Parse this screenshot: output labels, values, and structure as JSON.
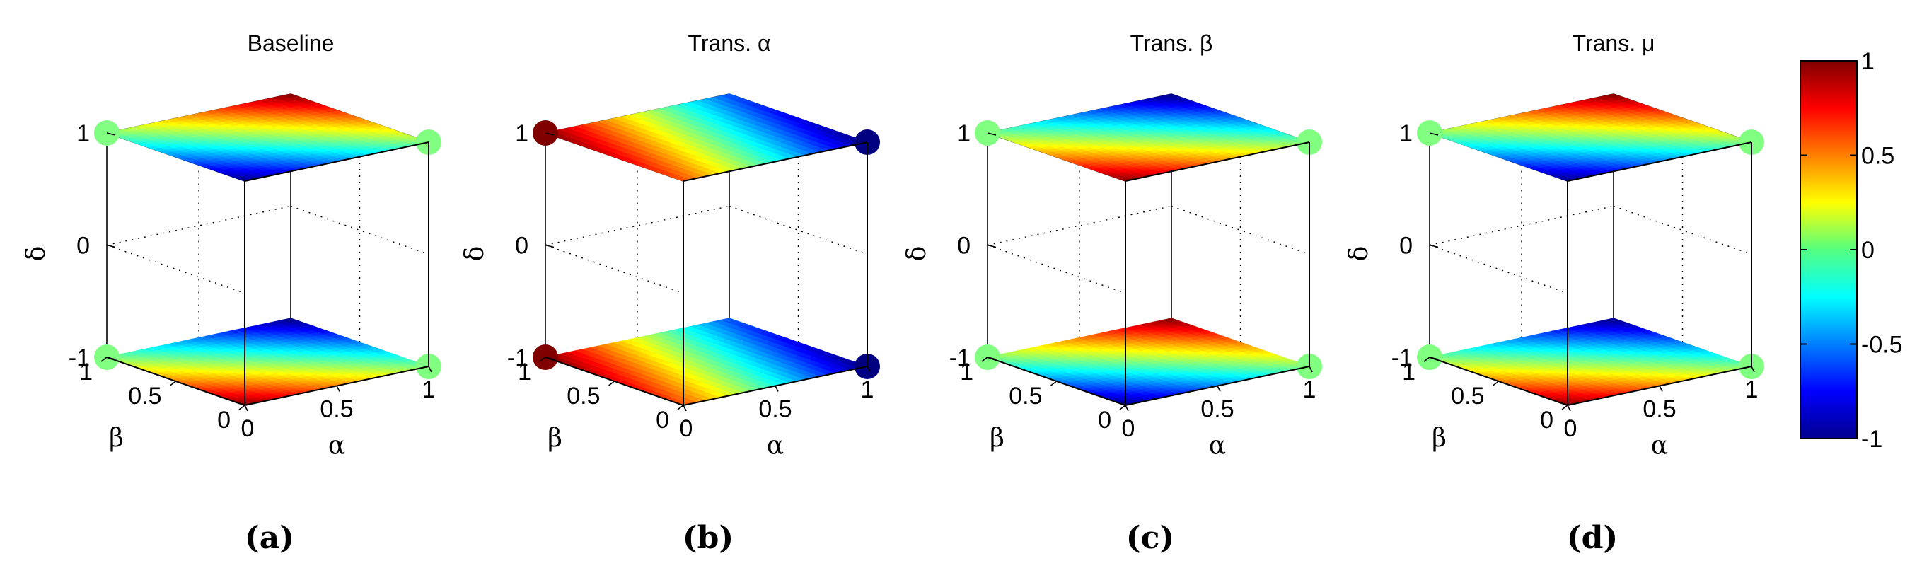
{
  "chart_data": [
    {
      "panel": "(a)",
      "type": "surface3d",
      "title": "Baseline",
      "xlabel": "α",
      "ylabel": "β",
      "zlabel": "δ",
      "xticks": [
        "0",
        "0.5",
        "1"
      ],
      "yticks": [
        "0",
        "0.5",
        "1"
      ],
      "zticks": [
        "-1",
        "0",
        "1"
      ],
      "xlim": [
        0,
        1
      ],
      "ylim": [
        0,
        1
      ],
      "zlim": [
        -1,
        1
      ],
      "slices_at_delta": [
        -1,
        1
      ],
      "color_function": "baseline",
      "color_range": [
        -1,
        1
      ]
    },
    {
      "panel": "(b)",
      "type": "surface3d",
      "title": "Trans. α",
      "xlabel": "α",
      "ylabel": "β",
      "zlabel": "δ",
      "xticks": [
        "0",
        "0.5",
        "1"
      ],
      "yticks": [
        "0",
        "0.5",
        "1"
      ],
      "zticks": [
        "-1",
        "0",
        "1"
      ],
      "xlim": [
        0,
        1
      ],
      "ylim": [
        0,
        1
      ],
      "zlim": [
        -1,
        1
      ],
      "slices_at_delta": [
        -1,
        1
      ],
      "color_function": "transform_alpha",
      "color_range": [
        -1,
        1
      ]
    },
    {
      "panel": "(c)",
      "type": "surface3d",
      "title": "Trans. β",
      "xlabel": "α",
      "ylabel": "β",
      "zlabel": "δ",
      "xticks": [
        "0",
        "0.5",
        "1"
      ],
      "yticks": [
        "0",
        "0.5",
        "1"
      ],
      "zticks": [
        "-1",
        "0",
        "1"
      ],
      "xlim": [
        0,
        1
      ],
      "ylim": [
        0,
        1
      ],
      "zlim": [
        -1,
        1
      ],
      "slices_at_delta": [
        -1,
        1
      ],
      "color_function": "transform_beta",
      "color_range": [
        -1,
        1
      ]
    },
    {
      "panel": "(d)",
      "type": "surface3d",
      "title": "Trans. μ",
      "xlabel": "α",
      "ylabel": "β",
      "zlabel": "δ",
      "xticks": [
        "0",
        "0.5",
        "1"
      ],
      "yticks": [
        "0",
        "0.5",
        "1"
      ],
      "zticks": [
        "-1",
        "0",
        "1"
      ],
      "xlim": [
        0,
        1
      ],
      "ylim": [
        0,
        1
      ],
      "zlim": [
        -1,
        1
      ],
      "slices_at_delta": [
        -1,
        1
      ],
      "color_function": "transform_mu",
      "color_range": [
        -1,
        1
      ]
    }
  ],
  "colorbar": {
    "colormap": "jet",
    "range": [
      -1,
      1
    ],
    "ticks": [
      "1",
      "0.5",
      "0",
      "-0.5",
      "-1"
    ],
    "tick_values": [
      1,
      0.5,
      0,
      -0.5,
      -1
    ]
  }
}
